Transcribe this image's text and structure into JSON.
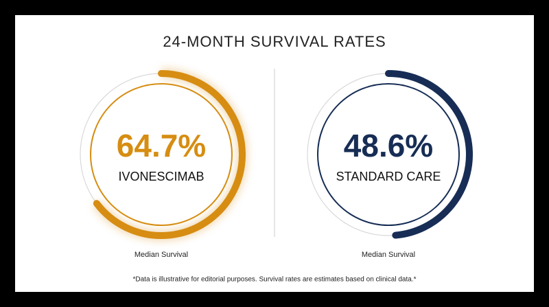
{
  "title": "24-MONTH SURVIVAL RATES",
  "footnote": "*Data is illustrative for editorial purposes. Survival rates are estimates based on clinical data.*",
  "chart_data": [
    {
      "type": "gauge",
      "values": [
        64.7
      ],
      "value_labels": [
        "64.7%"
      ],
      "label": "IVONESCIMAB",
      "caption": "Median Survival",
      "color": "#d68d12",
      "ylim": [
        0,
        100
      ]
    },
    {
      "type": "gauge",
      "values": [
        48.6
      ],
      "value_labels": [
        "48.6%"
      ],
      "label": "STANDARD CARE",
      "caption": "Median Survival",
      "color": "#172d55",
      "ylim": [
        0,
        100
      ]
    }
  ]
}
